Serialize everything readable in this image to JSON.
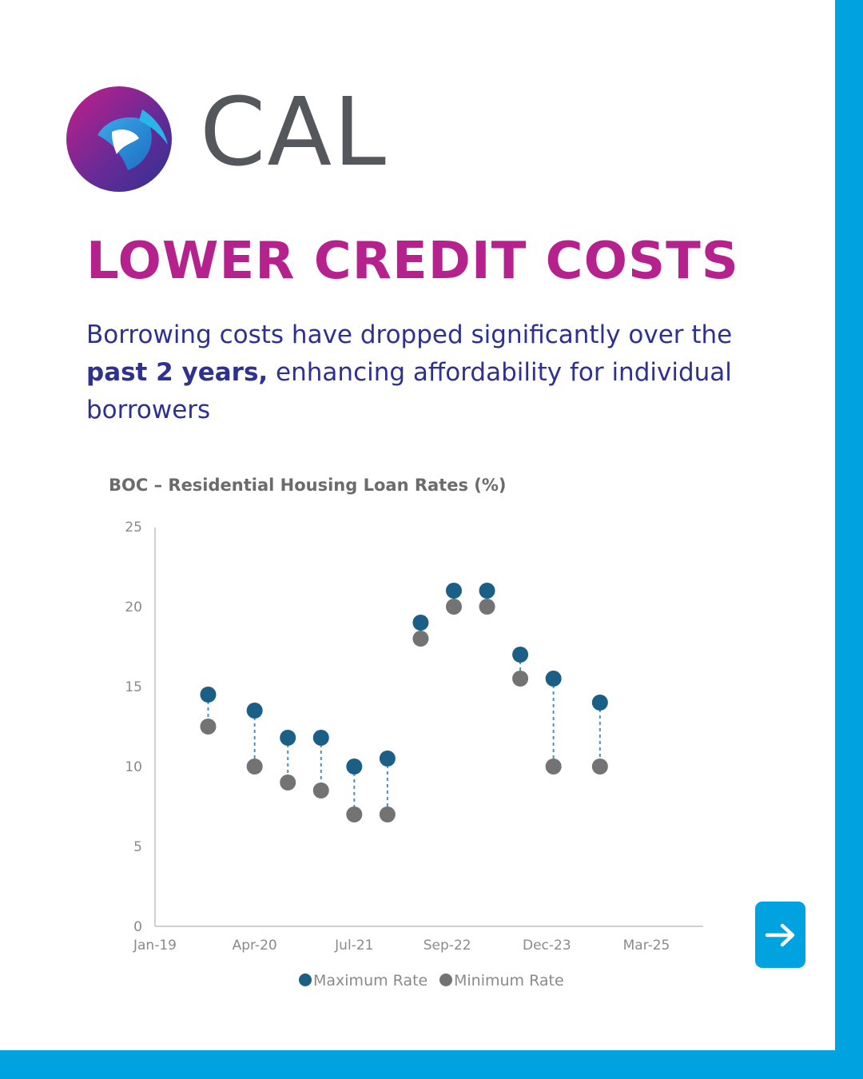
{
  "brand": {
    "name": "CAL",
    "colors": {
      "magenta": "#b6228d",
      "navy": "#2e3192",
      "cyan": "#00a3e0",
      "gray": "#54575c"
    }
  },
  "headline": "LOWER CREDIT COSTS",
  "subtitle": {
    "line_start": "Borrowing costs have dropped significantly over the ",
    "emphasis": "past 2 years,",
    "line_end": " enhancing affordability for individual borrowers"
  },
  "icons": {
    "next": "arrow-right-icon"
  },
  "chart_data": {
    "type": "scatter",
    "title": "BOC – Residential Housing Loan Rates (%)",
    "xlabel": "",
    "ylabel": "",
    "x_ticks": [
      "Jan-19",
      "Apr-20",
      "Jul-21",
      "Sep-22",
      "Dec-23",
      "Mar-25"
    ],
    "y_ticks": [
      0,
      5,
      10,
      15,
      20,
      25
    ],
    "ylim": [
      0,
      25
    ],
    "grid": false,
    "legend": "bottom",
    "x": [
      "Sep-19",
      "Apr-20",
      "Sep-20",
      "Feb-21",
      "Jul-21",
      "Dec-21",
      "May-22",
      "Oct-22",
      "Mar-23",
      "Aug-23",
      "Jan-24",
      "Aug-24"
    ],
    "series": [
      {
        "name": "Maximum Rate",
        "color": "#1b5f86",
        "values": [
          14.5,
          13.5,
          11.8,
          11.8,
          10.0,
          10.5,
          19.0,
          21.0,
          21.0,
          17.0,
          15.5,
          14.0
        ]
      },
      {
        "name": "Minimum Rate",
        "color": "#737373",
        "values": [
          12.5,
          10.0,
          9.0,
          8.5,
          7.0,
          7.0,
          18.0,
          20.0,
          20.0,
          15.5,
          10.0,
          10.0
        ]
      }
    ]
  }
}
